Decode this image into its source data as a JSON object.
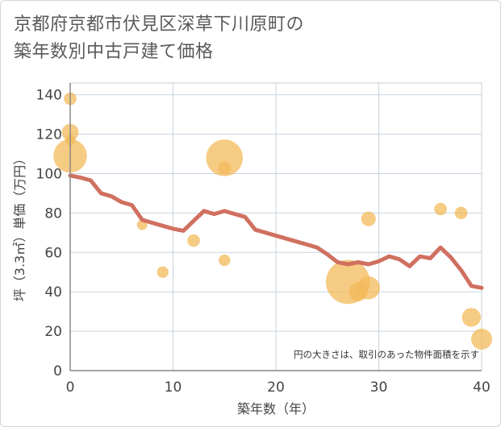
{
  "chart_data": {
    "type": "scatter",
    "title_lines": [
      "京都府京都市伏見区深草下川原町の",
      "築年数別中古戸建て価格"
    ],
    "xlabel": "築年数（年）",
    "ylabel": "坪（3.3㎡）単価（万円）",
    "xlim": [
      0,
      40
    ],
    "ylim": [
      0,
      146
    ],
    "xticks": [
      0,
      10,
      20,
      30,
      40
    ],
    "yticks": [
      0,
      20,
      40,
      60,
      80,
      100,
      120,
      140
    ],
    "grid": true,
    "note": "円の大きさは、取引のあった物件面積を示す",
    "scatter": [
      {
        "x": 0,
        "y": 138,
        "size": 1.2
      },
      {
        "x": 0,
        "y": 121,
        "size": 1.6
      },
      {
        "x": 0,
        "y": 117,
        "size": 1.0
      },
      {
        "x": 0,
        "y": 109,
        "size": 3.2
      },
      {
        "x": 7,
        "y": 74,
        "size": 1.0
      },
      {
        "x": 9,
        "y": 50,
        "size": 1.1
      },
      {
        "x": 12,
        "y": 66,
        "size": 1.2
      },
      {
        "x": 15,
        "y": 108,
        "size": 3.5
      },
      {
        "x": 15,
        "y": 103,
        "size": 1.2
      },
      {
        "x": 15,
        "y": 56,
        "size": 1.1
      },
      {
        "x": 27,
        "y": 45,
        "size": 4.2
      },
      {
        "x": 28,
        "y": 40,
        "size": 1.8
      },
      {
        "x": 29,
        "y": 42,
        "size": 2.2
      },
      {
        "x": 29,
        "y": 77,
        "size": 1.4
      },
      {
        "x": 36,
        "y": 82,
        "size": 1.2
      },
      {
        "x": 38,
        "y": 80,
        "size": 1.2
      },
      {
        "x": 39,
        "y": 27,
        "size": 1.8
      },
      {
        "x": 40,
        "y": 16,
        "size": 2.0
      }
    ],
    "line": {
      "x": [
        0,
        1,
        2,
        3,
        4,
        5,
        6,
        7,
        8,
        9,
        10,
        11,
        12,
        13,
        14,
        15,
        16,
        17,
        18,
        19,
        20,
        21,
        22,
        23,
        24,
        25,
        26,
        27,
        28,
        29,
        30,
        31,
        32,
        33,
        34,
        35,
        36,
        37,
        38,
        39,
        40
      ],
      "y": [
        99,
        98,
        96.5,
        90,
        88.5,
        85.5,
        84,
        76.5,
        75,
        73.5,
        72,
        71,
        76,
        81,
        79.5,
        81,
        79.5,
        78,
        71.5,
        70,
        68.5,
        67,
        65.5,
        64,
        62.5,
        59,
        55,
        54,
        55,
        54,
        55.5,
        58,
        56.5,
        53,
        58,
        57,
        62.5,
        57.5,
        51,
        43,
        42
      ]
    },
    "colors": {
      "bubble": "#f3b95a",
      "line": "#d07060",
      "grid": "#c8d4e0",
      "axis": "#888888",
      "plot_border": "#cccccc"
    }
  }
}
